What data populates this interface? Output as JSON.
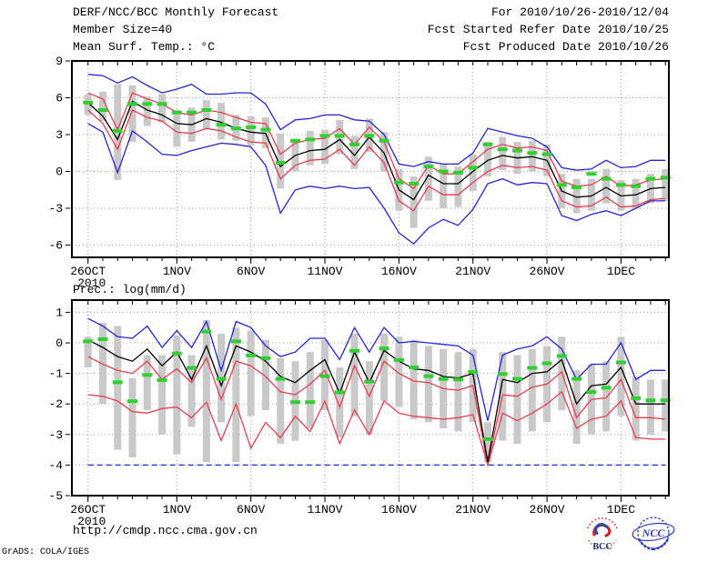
{
  "header": {
    "product_title": "DERF/NCC/BCC Monthly Forecast",
    "member_size": "Member Size=40",
    "valid_range": "For 2010/10/26-2010/12/04",
    "fcst_refer": "Fcst Started Refer Date 2010/10/25",
    "fcst_produced": "Fcst Produced Date 2010/10/26"
  },
  "footer": {
    "url": "http://cmdp.ncc.cma.gov.cn",
    "grads_credit": "GrADS: COLA/IGES",
    "logos": [
      {
        "name": "bcc-logo",
        "label": "BCC"
      },
      {
        "name": "ncc-logo",
        "label": "NCC"
      }
    ]
  },
  "chart_data": [
    {
      "name": "temp-chart",
      "type": "line",
      "title": "Mean Surf. Temp.: °C",
      "ylim": [
        -7,
        9
      ],
      "yticks": [
        9,
        6,
        3,
        0,
        -3,
        -6
      ],
      "grid": true,
      "legend_position": "none",
      "x_ticks": [
        {
          "day": 0,
          "label": "26OCT",
          "sublabel": "2010"
        },
        {
          "day": 6,
          "label": "1NOV"
        },
        {
          "day": 11,
          "label": "6NOV"
        },
        {
          "day": 16,
          "label": "11NOV"
        },
        {
          "day": 21,
          "label": "16NOV"
        },
        {
          "day": 26,
          "label": "21NOV"
        },
        {
          "day": 31,
          "label": "26NOV"
        },
        {
          "day": 36,
          "label": "1DEC"
        }
      ],
      "categories": [
        "26OCT",
        "27OCT",
        "28OCT",
        "29OCT",
        "30OCT",
        "31OCT",
        "1NOV",
        "2NOV",
        "3NOV",
        "4NOV",
        "5NOV",
        "6NOV",
        "7NOV",
        "8NOV",
        "9NOV",
        "10NOV",
        "11NOV",
        "12NOV",
        "13NOV",
        "14NOV",
        "15NOV",
        "16NOV",
        "17NOV",
        "18NOV",
        "19NOV",
        "20NOV",
        "21NOV",
        "22NOV",
        "23NOV",
        "24NOV",
        "25NOV",
        "26NOV",
        "27NOV",
        "28NOV",
        "29NOV",
        "30NOV",
        "1DEC",
        "2DEC",
        "3DEC",
        "4DEC"
      ],
      "series": [
        {
          "name": "ensemble-spread",
          "type": "bar",
          "color": "#c9c9c9",
          "ranges": [
            [
              4.6,
              6.3
            ],
            [
              4.1,
              6.5
            ],
            [
              -0.7,
              7.1
            ],
            [
              2.4,
              7.0
            ],
            [
              3.7,
              6.1
            ],
            [
              4.0,
              6.3
            ],
            [
              2.0,
              5.0
            ],
            [
              2.4,
              5.2
            ],
            [
              3.4,
              5.8
            ],
            [
              2.6,
              5.6
            ],
            [
              2.5,
              4.6
            ],
            [
              2.1,
              4.5
            ],
            [
              1.9,
              4.4
            ],
            [
              -1.4,
              3.1
            ],
            [
              0.0,
              2.6
            ],
            [
              0.5,
              3.3
            ],
            [
              0.6,
              3.4
            ],
            [
              1.4,
              4.2
            ],
            [
              0.2,
              2.9
            ],
            [
              1.6,
              4.3
            ],
            [
              0.0,
              3.2
            ],
            [
              -3.2,
              0.2
            ],
            [
              -4.6,
              -0.4
            ],
            [
              -2.4,
              1.2
            ],
            [
              -3.0,
              0.6
            ],
            [
              -2.9,
              0.4
            ],
            [
              -1.6,
              1.4
            ],
            [
              -0.4,
              2.4
            ],
            [
              0.1,
              2.8
            ],
            [
              -0.2,
              2.4
            ],
            [
              0.0,
              2.5
            ],
            [
              -0.4,
              2.2
            ],
            [
              -3.0,
              -0.2
            ],
            [
              -3.4,
              -0.6
            ],
            [
              -3.2,
              -0.6
            ],
            [
              -2.6,
              0.2
            ],
            [
              -3.2,
              -0.7
            ],
            [
              -3.0,
              -0.6
            ],
            [
              -2.6,
              -0.2
            ],
            [
              -2.4,
              0.2
            ]
          ]
        },
        {
          "name": "ensemble-max",
          "type": "line",
          "color": "#2424d8",
          "dashed": false,
          "values": [
            7.9,
            7.8,
            7.2,
            7.7,
            7.0,
            6.4,
            6.7,
            7.1,
            6.3,
            6.3,
            6.4,
            6.4,
            5.5,
            3.4,
            4.2,
            4.3,
            4.6,
            4.6,
            4.2,
            4.1,
            3.0,
            0.6,
            0.4,
            0.8,
            0.6,
            0.6,
            1.5,
            3.5,
            3.2,
            2.9,
            2.7,
            2.0,
            0.3,
            0.1,
            0.2,
            0.9,
            0.3,
            0.4,
            0.9,
            0.9
          ]
        },
        {
          "name": "ensemble-min",
          "type": "line",
          "color": "#2424d8",
          "dashed": false,
          "values": [
            3.9,
            3.2,
            -0.1,
            3.3,
            2.4,
            1.4,
            1.3,
            1.7,
            2.0,
            2.3,
            2.2,
            2.0,
            0.5,
            -3.4,
            -1.5,
            -1.2,
            -1.4,
            -1.2,
            -1.4,
            -1.3,
            -3.0,
            -5.0,
            -5.9,
            -4.6,
            -3.9,
            -4.4,
            -3.1,
            -1.0,
            -0.6,
            -1.1,
            -0.9,
            -1.0,
            -3.6,
            -4.0,
            -3.5,
            -3.2,
            -3.6,
            -3.0,
            -2.4,
            -2.4
          ]
        },
        {
          "name": "upper-quartile",
          "type": "line",
          "color": "#e83c50",
          "dashed": false,
          "values": [
            6.4,
            5.9,
            3.4,
            6.4,
            5.9,
            5.5,
            4.8,
            4.6,
            5.0,
            4.8,
            4.4,
            4.0,
            3.9,
            1.4,
            2.3,
            2.6,
            2.7,
            3.5,
            2.2,
            3.6,
            2.4,
            -0.6,
            -1.4,
            0.5,
            -0.2,
            -0.2,
            0.8,
            1.8,
            2.2,
            1.9,
            2.0,
            1.7,
            -0.8,
            -1.2,
            -1.1,
            -0.4,
            -1.2,
            -1.1,
            -0.7,
            -0.6
          ]
        },
        {
          "name": "lower-quartile",
          "type": "line",
          "color": "#e83c50",
          "dashed": false,
          "values": [
            5.0,
            3.9,
            1.8,
            5.0,
            4.4,
            4.1,
            3.2,
            3.1,
            3.5,
            3.3,
            2.8,
            2.4,
            2.3,
            -0.6,
            0.5,
            0.9,
            1.0,
            1.8,
            0.5,
            2.0,
            0.7,
            -2.4,
            -3.2,
            -1.2,
            -1.9,
            -1.9,
            -0.9,
            0.0,
            0.5,
            0.3,
            0.4,
            0.1,
            -2.4,
            -2.9,
            -2.8,
            -2.1,
            -2.9,
            -2.8,
            -2.3,
            -2.2
          ]
        },
        {
          "name": "ensemble-mean",
          "type": "line",
          "color": "#000000",
          "dashed": false,
          "values": [
            5.6,
            4.5,
            2.6,
            5.7,
            5.0,
            4.6,
            3.9,
            3.8,
            4.3,
            4.0,
            3.5,
            3.2,
            3.1,
            0.4,
            1.3,
            1.7,
            1.8,
            2.6,
            1.3,
            2.8,
            1.5,
            -1.5,
            -2.3,
            -0.3,
            -1.0,
            -1.0,
            0.0,
            0.9,
            1.3,
            1.1,
            1.2,
            0.9,
            -1.6,
            -2.1,
            -2.0,
            -1.3,
            -2.0,
            -1.9,
            -1.4,
            -1.3
          ]
        },
        {
          "name": "climatology-obs",
          "type": "dash",
          "color": "#30d030",
          "values": [
            5.6,
            5.0,
            3.3,
            5.5,
            5.5,
            5.5,
            4.8,
            4.8,
            5.0,
            3.8,
            3.5,
            3.6,
            3.4,
            0.7,
            2.5,
            2.6,
            2.9,
            2.9,
            2.2,
            2.9,
            2.5,
            -0.9,
            -1.0,
            0.4,
            0.0,
            -0.1,
            0.3,
            2.2,
            1.8,
            1.7,
            1.5,
            1.4,
            -1.1,
            -1.3,
            -0.2,
            -0.6,
            -1.1,
            -1.2,
            -0.6,
            -0.5
          ]
        }
      ]
    },
    {
      "name": "precip-chart",
      "type": "line",
      "title": "Prec.: log(mm/d)",
      "ylim": [
        -5,
        1.4
      ],
      "yticks": [
        1,
        0,
        -1,
        -2,
        -3,
        -4,
        -5
      ],
      "grid": true,
      "legend_position": "none",
      "x_ticks": [
        {
          "day": 0,
          "label": "26OCT",
          "sublabel": "2010"
        },
        {
          "day": 6,
          "label": "1NOV"
        },
        {
          "day": 11,
          "label": "6NOV"
        },
        {
          "day": 16,
          "label": "11NOV"
        },
        {
          "day": 21,
          "label": "16NOV"
        },
        {
          "day": 26,
          "label": "21NOV"
        },
        {
          "day": 31,
          "label": "26NOV"
        },
        {
          "day": 36,
          "label": "1DEC"
        }
      ],
      "categories": [
        "26OCT",
        "27OCT",
        "28OCT",
        "29OCT",
        "30OCT",
        "31OCT",
        "1NOV",
        "2NOV",
        "3NOV",
        "4NOV",
        "5NOV",
        "6NOV",
        "7NOV",
        "8NOV",
        "9NOV",
        "10NOV",
        "11NOV",
        "12NOV",
        "13NOV",
        "14NOV",
        "15NOV",
        "16NOV",
        "17NOV",
        "18NOV",
        "19NOV",
        "20NOV",
        "21NOV",
        "22NOV",
        "23NOV",
        "24NOV",
        "25NOV",
        "26NOV",
        "27NOV",
        "28NOV",
        "29NOV",
        "30NOV",
        "1DEC",
        "2DEC",
        "3DEC",
        "4DEC"
      ],
      "series": [
        {
          "name": "ensemble-spread",
          "type": "bar",
          "color": "#c9c9c9",
          "ranges": [
            [
              -0.8,
              0.2
            ],
            [
              -2.0,
              0.65
            ],
            [
              -3.5,
              0.55
            ],
            [
              -3.75,
              -1.15
            ],
            [
              -2.2,
              -0.4
            ],
            [
              -3.0,
              -0.4
            ],
            [
              -3.65,
              0.25
            ],
            [
              -2.75,
              -0.4
            ],
            [
              -3.9,
              0.75
            ],
            [
              -2.6,
              0.3
            ],
            [
              -3.9,
              0.5
            ],
            [
              -2.4,
              0.4
            ],
            [
              -2.2,
              0.1
            ],
            [
              -3.3,
              -0.5
            ],
            [
              -3.2,
              -0.6
            ],
            [
              -2.8,
              -0.3
            ],
            [
              -2.2,
              0.1
            ],
            [
              -3.1,
              -0.8
            ],
            [
              -2.4,
              0.3
            ],
            [
              -3.0,
              -0.6
            ],
            [
              -1.9,
              0.3
            ],
            [
              -2.1,
              0.2
            ],
            [
              -2.5,
              0.1
            ],
            [
              -2.6,
              -0.1
            ],
            [
              -2.8,
              -0.2
            ],
            [
              -2.9,
              -0.3
            ],
            [
              -2.6,
              -0.2
            ],
            [
              -3.9,
              -2.6
            ],
            [
              -3.2,
              -0.3
            ],
            [
              -3.3,
              -0.4
            ],
            [
              -2.9,
              -0.2
            ],
            [
              -2.6,
              -0.1
            ],
            [
              -2.2,
              0.2
            ],
            [
              -3.3,
              -0.9
            ],
            [
              -3.0,
              -0.7
            ],
            [
              -2.9,
              -0.6
            ],
            [
              -2.4,
              0.2
            ],
            [
              -3.2,
              -1.1
            ],
            [
              -3.0,
              -1.2
            ],
            [
              -2.9,
              -1.2
            ]
          ]
        },
        {
          "name": "ensemble-max",
          "type": "line",
          "color": "#2424d8",
          "dashed": false,
          "values": [
            0.8,
            0.55,
            0.2,
            0.15,
            0.55,
            -0.15,
            0.4,
            -0.15,
            0.7,
            -0.9,
            0.7,
            0.5,
            -0.1,
            -0.45,
            -0.3,
            0.15,
            0.15,
            -0.55,
            0.5,
            -0.3,
            0.5,
            0.0,
            0.05,
            0.0,
            -0.05,
            -0.1,
            -0.4,
            -2.55,
            -0.4,
            -0.2,
            -0.1,
            0.2,
            -0.2,
            -1.2,
            -0.7,
            -0.7,
            0.0,
            -1.2,
            -0.9,
            -0.9
          ]
        },
        {
          "name": "ensemble-min",
          "type": "line",
          "color": "#2424d8",
          "dashed": true,
          "values": [
            -4,
            -4,
            -4,
            -4,
            -4,
            -4,
            -4,
            -4,
            -4,
            -4,
            -4,
            -4,
            -4,
            -4,
            -4,
            -4,
            -4,
            -4,
            -4,
            -4,
            -4,
            -4,
            -4,
            -4,
            -4,
            -4,
            -4,
            -4,
            -4,
            -4,
            -4,
            -4,
            -4,
            -4,
            -4,
            -4,
            -4,
            -4,
            -4,
            -4
          ]
        },
        {
          "name": "upper-quartile",
          "type": "line",
          "color": "#e83c50",
          "dashed": false,
          "values": [
            -0.45,
            -0.7,
            -0.9,
            -1.0,
            -0.6,
            -1.2,
            -0.85,
            -1.3,
            -0.5,
            -1.85,
            -0.6,
            -0.75,
            -1.1,
            -1.6,
            -1.7,
            -1.35,
            -0.9,
            -2.1,
            -0.75,
            -1.75,
            -0.6,
            -1.0,
            -1.25,
            -1.3,
            -1.5,
            -1.55,
            -1.4,
            -4.0,
            -1.7,
            -1.75,
            -1.45,
            -1.35,
            -0.95,
            -2.45,
            -1.85,
            -1.8,
            -1.2,
            -2.45,
            -2.45,
            -2.5
          ]
        },
        {
          "name": "lower-quartile",
          "type": "line",
          "color": "#e83c50",
          "dashed": false,
          "values": [
            -1.7,
            -1.75,
            -1.9,
            -2.25,
            -2.3,
            -2.15,
            -2.1,
            -2.45,
            -1.95,
            -3.2,
            -2.0,
            -3.45,
            -2.6,
            -3.1,
            -2.4,
            -2.9,
            -1.9,
            -3.3,
            -2.2,
            -3.0,
            -1.9,
            -2.3,
            -2.4,
            -2.45,
            -2.5,
            -2.45,
            -2.35,
            -4.0,
            -2.3,
            -2.55,
            -2.3,
            -2.0,
            -1.6,
            -2.8,
            -2.5,
            -2.4,
            -1.9,
            -3.1,
            -3.15,
            -3.15
          ]
        },
        {
          "name": "ensemble-mean",
          "type": "line",
          "color": "#000000",
          "dashed": false,
          "values": [
            0.1,
            -0.15,
            -0.45,
            -0.6,
            -0.2,
            -0.75,
            -0.3,
            -1.2,
            -0.1,
            -1.4,
            -0.1,
            -0.3,
            -0.6,
            -1.1,
            -1.3,
            -0.9,
            -0.55,
            -1.65,
            -0.3,
            -1.3,
            -0.25,
            -0.6,
            -0.85,
            -0.9,
            -1.1,
            -1.15,
            -1.0,
            -3.9,
            -1.2,
            -1.3,
            -1.0,
            -0.95,
            -0.55,
            -2.0,
            -1.4,
            -1.35,
            -0.8,
            -2.0,
            -2.0,
            -2.0
          ]
        },
        {
          "name": "climatology-obs",
          "type": "dash",
          "color": "#30d030",
          "values": [
            0.05,
            0.12,
            -1.29,
            -1.91,
            -1.05,
            -1.22,
            -0.35,
            -0.82,
            0.37,
            -1.18,
            0.05,
            -0.41,
            -0.5,
            -1.18,
            -1.94,
            -1.94,
            -1.09,
            -1.62,
            -0.26,
            -1.27,
            -0.18,
            -0.56,
            -0.8,
            -1.09,
            -1.18,
            -1.2,
            -0.95,
            -3.15,
            -1.02,
            -1.18,
            -0.82,
            -0.67,
            -0.43,
            -1.18,
            -1.61,
            -1.47,
            -0.64,
            -1.81,
            -1.88,
            -1.88
          ]
        }
      ]
    }
  ]
}
